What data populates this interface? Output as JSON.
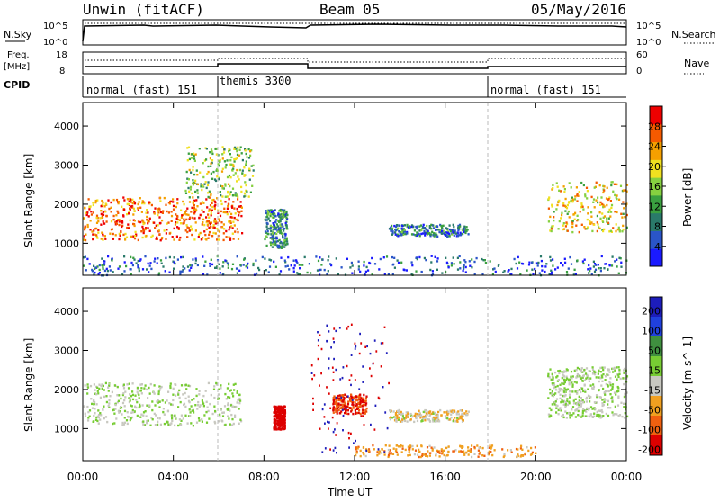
{
  "header": {
    "radar": "Unwin (fitACF)",
    "beam": "Beam 05",
    "date": "05/May/2016"
  },
  "top_panels": {
    "nsky_label": "N.Sky",
    "nsky_ticks": [
      "10^5",
      "10^0"
    ],
    "nsearch_label": "N.Search",
    "nsearch_ticks": [
      "10^5",
      "10^0"
    ],
    "freq_label_1": "Freq.",
    "freq_label_2": "[MHz]",
    "freq_ticks": [
      "18",
      "8"
    ],
    "nave_label": "Nave",
    "nave_ticks": [
      "60",
      "0"
    ],
    "cpid_label": "CPID",
    "cpid_segments": [
      {
        "label": "normal (fast) 151",
        "start_h": 0,
        "end_h": 6
      },
      {
        "label": "themis 3300",
        "start_h": 6,
        "end_h": 18
      },
      {
        "label": "normal (fast) 151",
        "start_h": 18,
        "end_h": 24
      }
    ]
  },
  "x_axis": {
    "title": "Time UT",
    "ticks": [
      "00:00",
      "04:00",
      "08:00",
      "12:00",
      "16:00",
      "20:00",
      "00:00"
    ]
  },
  "power_panel": {
    "ylabel": "Slant Range [km]",
    "yticks": [
      "1000",
      "2000",
      "3000",
      "4000"
    ],
    "colorbar_label": "Power [dB]",
    "colorbar_ticks": [
      "4",
      "8",
      "12",
      "16",
      "20",
      "24",
      "28"
    ],
    "colors": [
      "#1a1aff",
      "#2a55c8",
      "#2a7a6a",
      "#3aa040",
      "#86d040",
      "#f0e020",
      "#f5a000",
      "#f55a00",
      "#ee0000"
    ]
  },
  "velocity_panel": {
    "ylabel": "Slant Range [km]",
    "yticks": [
      "1000",
      "2000",
      "3000",
      "4000"
    ],
    "colorbar_label": "Velocity [m s^-1]",
    "colorbar_ticks": [
      "200",
      "100",
      "50",
      "15",
      "-15",
      "-50",
      "-100",
      "-200"
    ],
    "colors": [
      "#1d1dbb",
      "#2040dd",
      "#3f8f3f",
      "#77cc33",
      "#c8c8c0",
      "#f0a020",
      "#f06010",
      "#dd0000"
    ]
  },
  "chart_data": [
    {
      "type": "heatmap",
      "title": "Power [dB]",
      "xlabel": "Time UT",
      "ylabel": "Slant Range [km]",
      "xlim": [
        0,
        24
      ],
      "ylim": [
        180,
        4600
      ],
      "zlim": [
        0,
        32
      ],
      "features": [
        {
          "name": "auroral band",
          "t": [
            0,
            7
          ],
          "range": [
            1100,
            2200
          ],
          "power_db": 26
        },
        {
          "name": "spread echoes",
          "t": [
            4.5,
            7.5
          ],
          "range": [
            2200,
            3500
          ],
          "power_db": 16
        },
        {
          "name": "themis patch",
          "t": [
            8,
            9
          ],
          "range": [
            900,
            1900
          ],
          "power_db": 10
        },
        {
          "name": "midday streak",
          "t": [
            13.5,
            17
          ],
          "range": [
            1200,
            1500
          ],
          "power_db": 8
        },
        {
          "name": "evening band",
          "t": [
            20.5,
            24
          ],
          "range": [
            1300,
            2600
          ],
          "power_db": 20
        },
        {
          "name": "near-range clutter",
          "t": [
            0,
            24
          ],
          "range": [
            200,
            700
          ],
          "power_db": 6
        }
      ]
    },
    {
      "type": "heatmap",
      "title": "Velocity [m s^-1]",
      "xlabel": "Time UT",
      "ylabel": "Slant Range [km]",
      "xlim": [
        0,
        24
      ],
      "ylim": [
        180,
        4600
      ],
      "zlim": [
        -200,
        200
      ],
      "features": [
        {
          "name": "ground scatter band",
          "t": [
            0,
            7
          ],
          "range": [
            1100,
            2200
          ],
          "velocity": 0
        },
        {
          "name": "evening ground scatter",
          "t": [
            20.5,
            24
          ],
          "range": [
            1300,
            2600
          ],
          "velocity": 0
        },
        {
          "name": "red patch",
          "t": [
            8.4,
            8.9
          ],
          "range": [
            1000,
            1600
          ],
          "velocity": -200
        },
        {
          "name": "noon red cluster",
          "t": [
            11,
            12.5
          ],
          "range": [
            1400,
            1900
          ],
          "velocity": -150
        },
        {
          "name": "midday streak",
          "t": [
            13.5,
            17
          ],
          "range": [
            1200,
            1500
          ],
          "velocity": -30
        },
        {
          "name": "near-range orange",
          "t": [
            12,
            20
          ],
          "range": [
            300,
            600
          ],
          "velocity": -60
        }
      ]
    }
  ]
}
